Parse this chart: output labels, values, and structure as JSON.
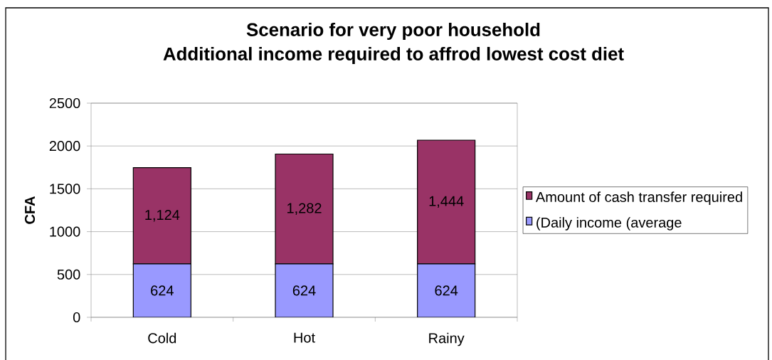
{
  "chart_data": {
    "type": "bar",
    "stacked": true,
    "title": "Scenario for very poor household",
    "subtitle": "Additional income required to affrod lowest cost diet",
    "ylabel": "CFA",
    "categories": [
      "Cold",
      "Hot",
      "Rainy"
    ],
    "series": [
      {
        "name": "(Daily income (average",
        "color": "#9999ff",
        "values": [
          624,
          624,
          624
        ],
        "value_labels": [
          "624",
          "624",
          "624"
        ]
      },
      {
        "name": "Amount of cash transfer required",
        "color": "#993366",
        "values": [
          1124,
          1282,
          1444
        ],
        "value_labels": [
          "1,124",
          "1,282",
          "1,444"
        ]
      }
    ],
    "ylim": [
      0,
      2500
    ],
    "yticks": [
      0,
      500,
      1000,
      1500,
      2000,
      2500
    ],
    "grid": "y",
    "legend": "right"
  }
}
